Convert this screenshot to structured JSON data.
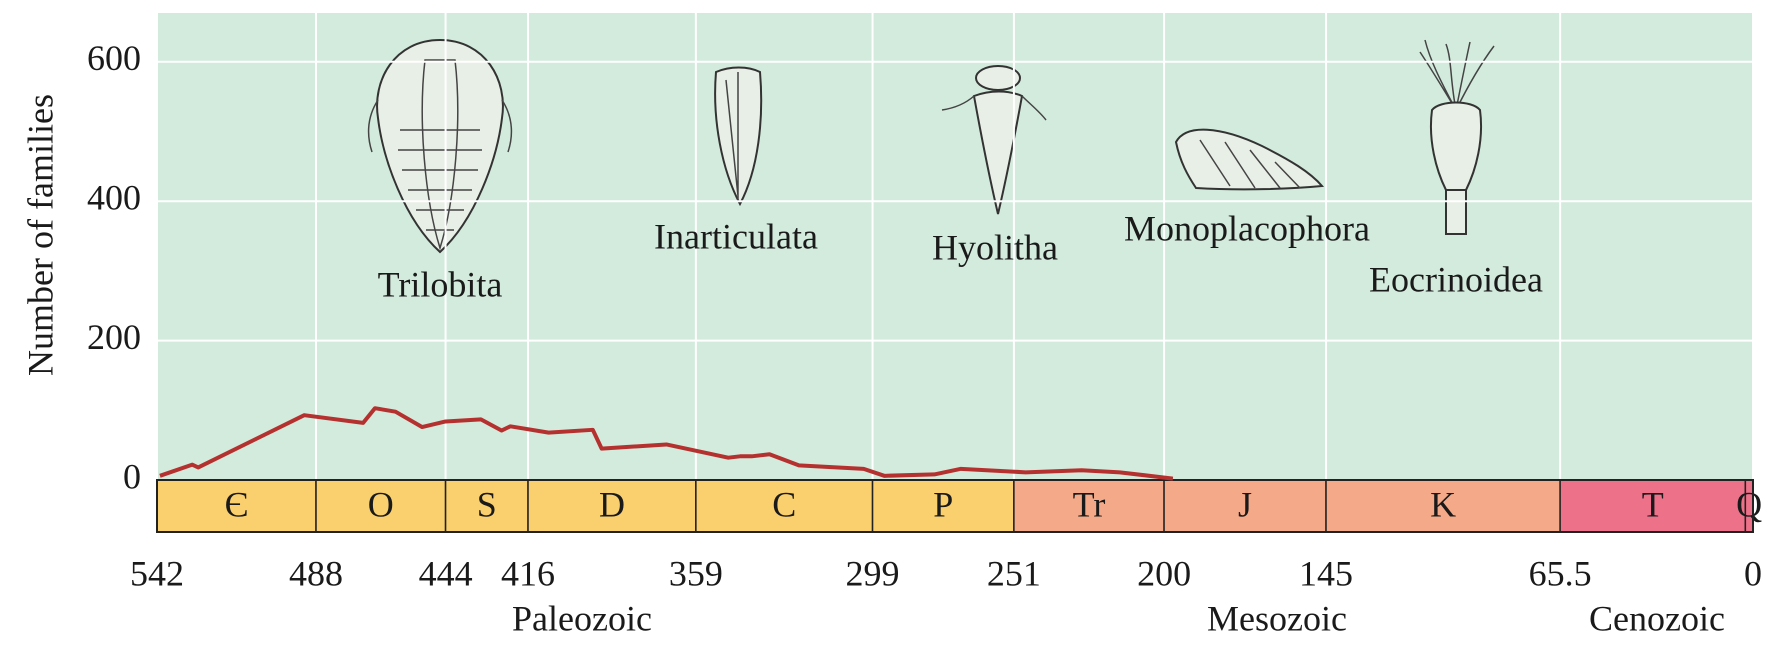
{
  "chart_data": {
    "type": "line",
    "y_label": "Number of families",
    "x": [
      541,
      530,
      528,
      492,
      472,
      468,
      461,
      452,
      444,
      432,
      425,
      422,
      409,
      394,
      391,
      369,
      348,
      344,
      340,
      334,
      324,
      302,
      295,
      278,
      269,
      247,
      228,
      215,
      197
    ],
    "values": [
      6,
      22,
      18,
      93,
      82,
      103,
      98,
      76,
      84,
      87,
      71,
      77,
      68,
      72,
      45,
      51,
      32,
      34,
      34,
      37,
      21,
      16,
      6,
      8,
      16,
      11,
      14,
      11,
      2
    ],
    "color": "#b5312f",
    "xlim": [
      542,
      0
    ],
    "xticks": [
      542,
      488,
      444,
      416,
      359,
      299,
      251,
      200,
      145,
      65.5,
      0
    ],
    "ylim": [
      0,
      670
    ],
    "yticks": [
      0,
      200,
      400,
      600
    ],
    "grid": true,
    "background": "#d3ebdc",
    "periods": [
      {
        "label": "Є",
        "start": 542,
        "end": 488
      },
      {
        "label": "O",
        "start": 488,
        "end": 444
      },
      {
        "label": "S",
        "start": 444,
        "end": 416
      },
      {
        "label": "D",
        "start": 416,
        "end": 359
      },
      {
        "label": "C",
        "start": 359,
        "end": 299
      },
      {
        "label": "P",
        "start": 299,
        "end": 251
      },
      {
        "label": "Tr",
        "start": 251,
        "end": 200
      },
      {
        "label": "J",
        "start": 200,
        "end": 145
      },
      {
        "label": "K",
        "start": 145,
        "end": 65.5
      },
      {
        "label": "T",
        "start": 65.5,
        "end": 2.6
      },
      {
        "label": "Q",
        "start": 2.6,
        "end": 0
      }
    ],
    "eras": [
      {
        "label": "Paleozoic",
        "start": 542,
        "end": 251,
        "color": "#f9d06d"
      },
      {
        "label": "Mesozoic",
        "start": 251,
        "end": 65.5,
        "color": "#f4aa88"
      },
      {
        "label": "Cenozoic",
        "start": 65.5,
        "end": 0,
        "color": "#ec7189"
      }
    ],
    "annotations": [
      "Trilobita",
      "Inarticulata",
      "Hyolitha",
      "Monoplacophora",
      "Eocrinoidea"
    ]
  }
}
